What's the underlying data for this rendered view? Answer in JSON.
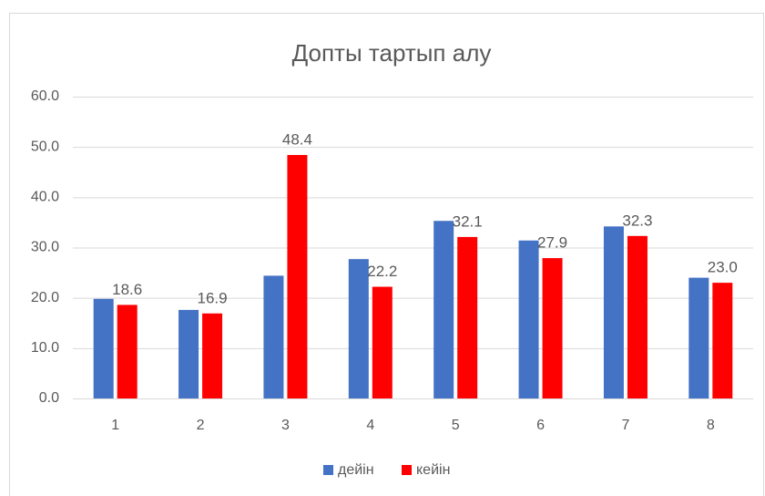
{
  "chart_data": {
    "type": "bar",
    "title": "Допты тартып алу",
    "categories": [
      "1",
      "2",
      "3",
      "4",
      "5",
      "6",
      "7",
      "8"
    ],
    "series": [
      {
        "name": "дейін",
        "color": "#4472c4",
        "values": [
          19.8,
          17.6,
          24.4,
          27.7,
          35.3,
          31.4,
          34.2,
          24.0
        ]
      },
      {
        "name": "кейін",
        "color": "#ff0000",
        "values": [
          18.6,
          16.9,
          48.4,
          22.2,
          32.1,
          27.9,
          32.3,
          23.0
        ],
        "value_labels": [
          "18.6",
          "16.9",
          "48.4",
          "22.2",
          "32.1",
          "27.9",
          "32.3",
          "23.0"
        ]
      }
    ],
    "ylim": [
      0,
      60
    ],
    "yticks": [
      {
        "value": 0,
        "label": "0.0"
      },
      {
        "value": 10,
        "label": "10.0"
      },
      {
        "value": 20,
        "label": "20.0"
      },
      {
        "value": 30,
        "label": "30.0"
      },
      {
        "value": 40,
        "label": "40.0"
      },
      {
        "value": 50,
        "label": "50.0"
      },
      {
        "value": 60,
        "label": "60.0"
      }
    ],
    "grid": true,
    "legend": "bottom"
  }
}
